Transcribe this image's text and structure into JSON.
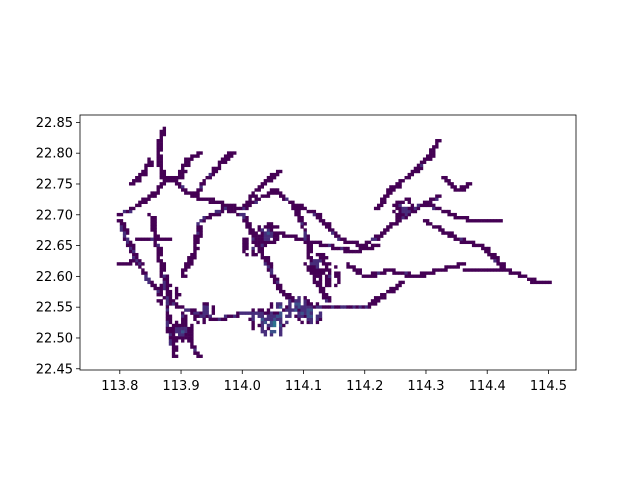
{
  "chart_data": {
    "type": "heatmap",
    "title": "",
    "xlabel": "",
    "ylabel": "",
    "xlim": [
      113.735,
      114.545
    ],
    "ylim": [
      22.448,
      22.862
    ],
    "x_ticks": [
      "113.8",
      "113.9",
      "114.0",
      "114.1",
      "114.2",
      "114.3",
      "114.4",
      "114.5"
    ],
    "y_ticks": [
      "22.45",
      "22.50",
      "22.55",
      "22.60",
      "22.65",
      "22.70",
      "22.75",
      "22.80",
      "22.85"
    ],
    "x_tick_values": [
      113.8,
      113.9,
      114.0,
      114.1,
      114.2,
      114.3,
      114.4,
      114.5
    ],
    "y_tick_values": [
      22.45,
      22.5,
      22.55,
      22.6,
      22.65,
      22.7,
      22.75,
      22.8,
      22.85
    ],
    "colormap": [
      "#440154",
      "#472d7b",
      "#3b528b",
      "#2c728e",
      "#21918c",
      "#28ae80",
      "#5ec962"
    ],
    "bin_size": [
      0.005,
      0.005
    ],
    "grid": false,
    "segments": [
      {
        "path": [
          [
            113.8,
            22.7
          ],
          [
            113.82,
            22.71
          ],
          [
            113.85,
            22.73
          ],
          [
            113.88,
            22.76
          ],
          [
            113.92,
            22.73
          ],
          [
            113.96,
            22.72
          ],
          [
            114.0,
            22.71
          ],
          [
            114.05,
            22.74
          ],
          [
            114.08,
            22.72
          ],
          [
            114.12,
            22.7
          ]
        ],
        "value": 0.05
      },
      {
        "path": [
          [
            113.8,
            22.69
          ],
          [
            113.81,
            22.66
          ],
          [
            113.83,
            22.62
          ],
          [
            113.85,
            22.59
          ],
          [
            113.88,
            22.56
          ],
          [
            113.92,
            22.54
          ],
          [
            113.96,
            22.53
          ],
          [
            114.0,
            22.54
          ],
          [
            114.05,
            22.54
          ],
          [
            114.1,
            22.55
          ],
          [
            114.14,
            22.55
          ],
          [
            114.2,
            22.55
          ]
        ],
        "value": 0.15
      },
      {
        "path": [
          [
            113.87,
            22.76
          ],
          [
            113.86,
            22.8
          ],
          [
            113.87,
            22.84
          ]
        ],
        "value": 0.03
      },
      {
        "path": [
          [
            113.89,
            22.75
          ],
          [
            113.91,
            22.79
          ],
          [
            113.93,
            22.8
          ]
        ],
        "value": 0.03
      },
      {
        "path": [
          [
            113.92,
            22.73
          ],
          [
            113.95,
            22.77
          ],
          [
            113.98,
            22.8
          ]
        ],
        "value": 0.03
      },
      {
        "path": [
          [
            114.0,
            22.71
          ],
          [
            114.03,
            22.75
          ],
          [
            114.06,
            22.77
          ]
        ],
        "value": 0.03
      },
      {
        "path": [
          [
            113.85,
            22.7
          ],
          [
            113.86,
            22.65
          ],
          [
            113.87,
            22.6
          ],
          [
            113.88,
            22.56
          ]
        ],
        "value": 0.06
      },
      {
        "path": [
          [
            113.88,
            22.56
          ],
          [
            113.88,
            22.51
          ],
          [
            113.89,
            22.47
          ]
        ],
        "value": 0.08
      },
      {
        "path": [
          [
            113.9,
            22.54
          ],
          [
            113.91,
            22.5
          ],
          [
            113.93,
            22.47
          ]
        ],
        "value": 0.08
      },
      {
        "path": [
          [
            113.9,
            22.6
          ],
          [
            113.92,
            22.64
          ],
          [
            113.93,
            22.69
          ]
        ],
        "value": 0.05
      },
      {
        "path": [
          [
            113.93,
            22.69
          ],
          [
            113.97,
            22.71
          ],
          [
            114.0,
            22.7
          ],
          [
            114.02,
            22.66
          ],
          [
            114.04,
            22.62
          ],
          [
            114.06,
            22.58
          ],
          [
            114.08,
            22.56
          ]
        ],
        "value": 0.1
      },
      {
        "path": [
          [
            114.02,
            22.66
          ],
          [
            114.06,
            22.67
          ],
          [
            114.1,
            22.66
          ],
          [
            114.14,
            22.65
          ],
          [
            114.18,
            22.64
          ],
          [
            114.22,
            22.65
          ]
        ],
        "value": 0.08
      },
      {
        "path": [
          [
            114.08,
            22.72
          ],
          [
            114.1,
            22.68
          ],
          [
            114.11,
            22.63
          ],
          [
            114.12,
            22.59
          ],
          [
            114.14,
            22.56
          ]
        ],
        "value": 0.08
      },
      {
        "path": [
          [
            114.12,
            22.7
          ],
          [
            114.16,
            22.66
          ],
          [
            114.2,
            22.65
          ],
          [
            114.24,
            22.68
          ],
          [
            114.28,
            22.71
          ],
          [
            114.32,
            22.73
          ]
        ],
        "value": 0.07
      },
      {
        "path": [
          [
            114.22,
            22.71
          ],
          [
            114.24,
            22.74
          ],
          [
            114.28,
            22.77
          ],
          [
            114.3,
            22.79
          ],
          [
            114.32,
            22.82
          ]
        ],
        "value": 0.05
      },
      {
        "path": [
          [
            114.3,
            22.72
          ],
          [
            114.34,
            22.7
          ],
          [
            114.38,
            22.69
          ],
          [
            114.42,
            22.69
          ]
        ],
        "value": 0.03
      },
      {
        "path": [
          [
            114.3,
            22.69
          ],
          [
            114.35,
            22.66
          ],
          [
            114.39,
            22.65
          ],
          [
            114.41,
            22.63
          ],
          [
            114.43,
            22.61
          ]
        ],
        "value": 0.03
      },
      {
        "path": [
          [
            114.17,
            22.62
          ],
          [
            114.2,
            22.6
          ],
          [
            114.24,
            22.61
          ],
          [
            114.28,
            22.6
          ],
          [
            114.32,
            22.61
          ],
          [
            114.36,
            22.62
          ]
        ],
        "value": 0.03
      },
      {
        "path": [
          [
            114.36,
            22.61
          ],
          [
            114.4,
            22.61
          ],
          [
            114.43,
            22.61
          ],
          [
            114.46,
            22.6
          ],
          [
            114.48,
            22.59
          ],
          [
            114.5,
            22.59
          ]
        ],
        "value": 0.02
      },
      {
        "path": [
          [
            114.2,
            22.55
          ],
          [
            114.23,
            22.57
          ],
          [
            114.26,
            22.59
          ]
        ],
        "value": 0.03
      },
      {
        "path": [
          [
            114.33,
            22.76
          ],
          [
            114.35,
            22.74
          ],
          [
            114.37,
            22.75
          ]
        ],
        "value": 0.02
      },
      {
        "path": [
          [
            113.83,
            22.63
          ],
          [
            113.81,
            22.62
          ],
          [
            113.8,
            22.62
          ]
        ],
        "value": 0.05
      },
      {
        "path": [
          [
            113.83,
            22.66
          ],
          [
            113.86,
            22.66
          ],
          [
            113.88,
            22.66
          ]
        ],
        "value": 0.05
      },
      {
        "path": [
          [
            113.82,
            22.75
          ],
          [
            113.84,
            22.77
          ],
          [
            113.85,
            22.79
          ]
        ],
        "value": 0.03
      }
    ],
    "hotspots": [
      {
        "x": 114.05,
        "y": 22.52,
        "value": 0.8
      },
      {
        "x": 114.06,
        "y": 22.54,
        "value": 0.65
      },
      {
        "x": 114.09,
        "y": 22.55,
        "value": 0.55
      },
      {
        "x": 114.11,
        "y": 22.54,
        "value": 0.6
      },
      {
        "x": 114.03,
        "y": 22.53,
        "value": 0.45
      },
      {
        "x": 113.94,
        "y": 22.54,
        "value": 0.4
      },
      {
        "x": 113.9,
        "y": 22.51,
        "value": 0.35
      },
      {
        "x": 114.04,
        "y": 22.67,
        "value": 0.35
      },
      {
        "x": 114.02,
        "y": 22.65,
        "value": 0.3
      },
      {
        "x": 114.12,
        "y": 22.62,
        "value": 0.3
      },
      {
        "x": 114.26,
        "y": 22.71,
        "value": 0.3
      },
      {
        "x": 113.88,
        "y": 22.57,
        "value": 0.25
      },
      {
        "x": 114.14,
        "y": 22.6,
        "value": 0.25
      }
    ]
  }
}
